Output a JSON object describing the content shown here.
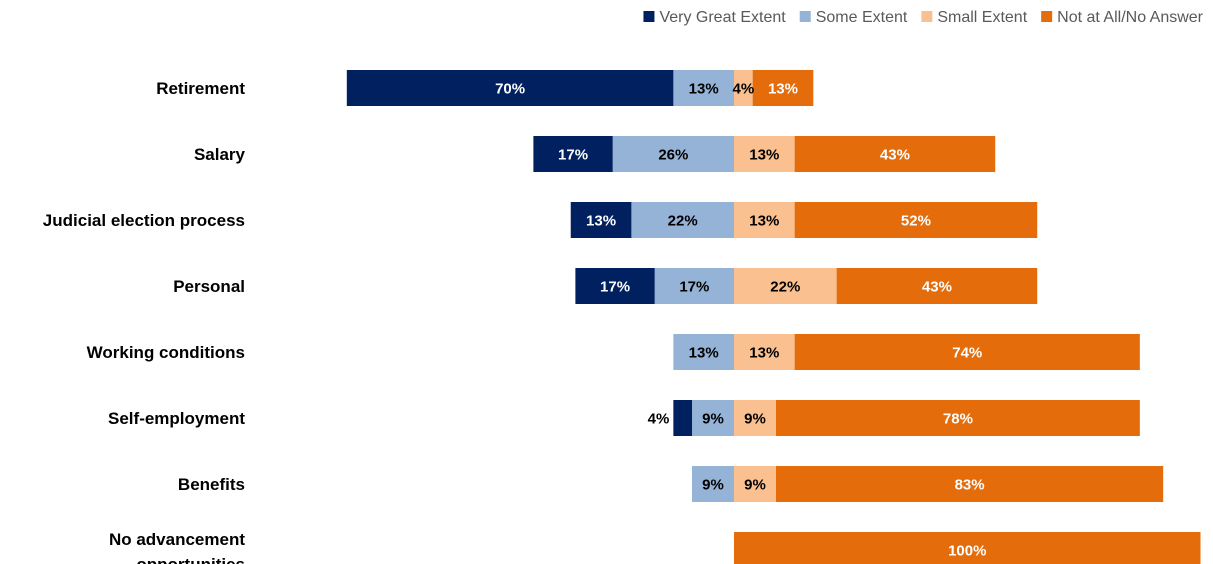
{
  "chart_data": {
    "type": "bar",
    "orientation": "horizontal",
    "stacked": "diverging",
    "categories": [
      "Retirement",
      "Salary",
      "Judicial election process",
      "Personal",
      "Working conditions",
      "Self-employment",
      "Benefits",
      "No advancement opportunities"
    ],
    "series": [
      {
        "name": "Very Great Extent",
        "color": "#002060",
        "values": [
          70,
          17,
          13,
          17,
          0,
          4,
          0,
          0
        ],
        "labels": [
          "70%",
          "17%",
          "13%",
          "17%",
          "",
          "4%",
          "",
          ""
        ]
      },
      {
        "name": "Some Extent",
        "color": "#95B3D7",
        "values": [
          13,
          26,
          22,
          17,
          13,
          9,
          9,
          0
        ],
        "labels": [
          "13%",
          "26%",
          "22%",
          "17%",
          "13%",
          "9%",
          "9%",
          ""
        ]
      },
      {
        "name": "Small Extent",
        "color": "#FAC090",
        "values": [
          4,
          13,
          13,
          22,
          13,
          9,
          9,
          0
        ],
        "labels": [
          "4%",
          "13%",
          "13%",
          "22%",
          "13%",
          "9%",
          "9%",
          ""
        ]
      },
      {
        "name": "Not at All/No Answer",
        "color": "#E46C0A",
        "values": [
          13,
          43,
          52,
          43,
          74,
          78,
          83,
          100
        ],
        "labels": [
          "13%",
          "43%",
          "52%",
          "43%",
          "74%",
          "78%",
          "83%",
          "100%"
        ]
      }
    ],
    "legend": {
      "position": "top-right"
    },
    "grid": false,
    "title": "",
    "xlabel": "",
    "ylabel": ""
  }
}
